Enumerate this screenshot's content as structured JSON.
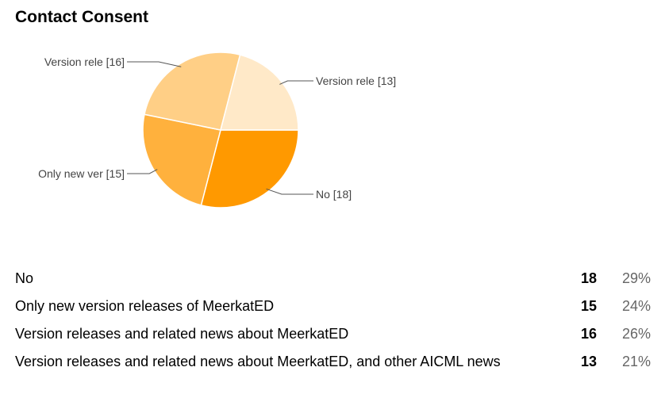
{
  "title": "Contact Consent",
  "chart_data": {
    "type": "pie",
    "slices": [
      {
        "label": "No [18]",
        "value": 18,
        "color": "#ff9900"
      },
      {
        "label": "Only new ver [15]",
        "value": 15,
        "color": "#ffb13d"
      },
      {
        "label": "Version rele [16]",
        "value": 16,
        "color": "#ffcf86"
      },
      {
        "label": "Version rele [13]",
        "value": 13,
        "color": "#ffe9c8"
      }
    ]
  },
  "table": {
    "rows": [
      {
        "label": "No",
        "count": "18",
        "percent": "29%"
      },
      {
        "label": "Only new version releases of MeerkatED",
        "count": "15",
        "percent": "24%"
      },
      {
        "label": "Version releases and related news about MeerkatED",
        "count": "16",
        "percent": "26%"
      },
      {
        "label": "Version releases and related news about MeerkatED, and other AICML news",
        "count": "13",
        "percent": "21%"
      }
    ]
  }
}
